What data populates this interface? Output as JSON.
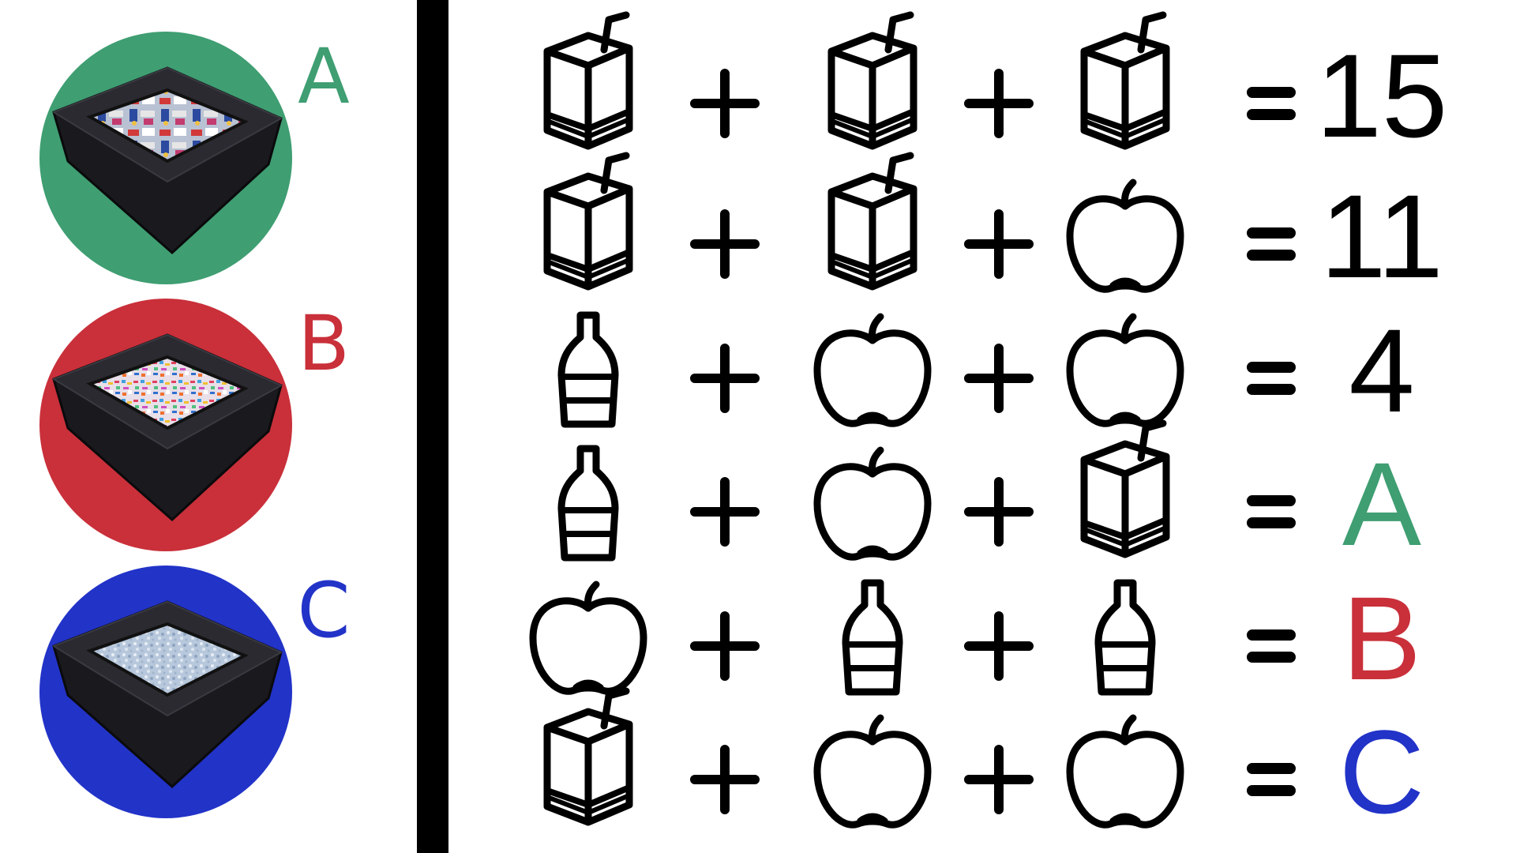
{
  "colors": {
    "green": "#3f9e72",
    "red": "#c9303a",
    "blue": "#2233c8",
    "ink": "#000000",
    "bin_fill": "#1e1e22",
    "bin_rim": "#2b2b30"
  },
  "bins": [
    {
      "letter": "A",
      "color": "#3f9e72",
      "contents": "cans-and-bottles"
    },
    {
      "letter": "B",
      "color": "#c9303a",
      "contents": "plastic-shreds"
    },
    {
      "letter": "C",
      "color": "#2233c8",
      "contents": "glass-crumbs"
    }
  ],
  "equations": [
    {
      "items": [
        "juice-box-icon",
        "juice-box-icon",
        "juice-box-icon"
      ],
      "plus": "+",
      "equals": "=",
      "result": "15",
      "result_color": "#000000"
    },
    {
      "items": [
        "juice-box-icon",
        "juice-box-icon",
        "apple-icon"
      ],
      "plus": "+",
      "equals": "=",
      "result": "11",
      "result_color": "#000000"
    },
    {
      "items": [
        "bottle-icon",
        "apple-icon",
        "apple-icon"
      ],
      "plus": "+",
      "equals": "=",
      "result": "4",
      "result_color": "#000000"
    },
    {
      "items": [
        "bottle-icon",
        "apple-icon",
        "juice-box-icon"
      ],
      "plus": "+",
      "equals": "=",
      "result": "A",
      "result_color": "#3f9e72"
    },
    {
      "items": [
        "apple-icon",
        "bottle-icon",
        "bottle-icon"
      ],
      "plus": "+",
      "equals": "=",
      "result": "B",
      "result_color": "#c9303a"
    },
    {
      "items": [
        "juice-box-icon",
        "apple-icon",
        "apple-icon"
      ],
      "plus": "+",
      "equals": "=",
      "result": "C",
      "result_color": "#2233c8"
    }
  ]
}
